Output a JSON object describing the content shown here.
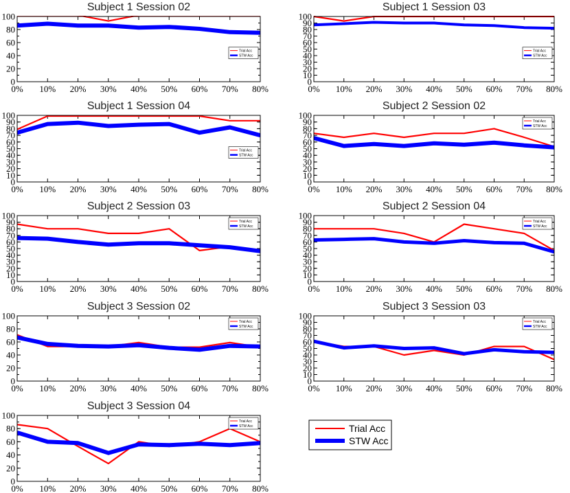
{
  "figure": {
    "legend": {
      "entries": [
        {
          "label": "Trial Acc",
          "color": "#ff0000",
          "width": "thin"
        },
        {
          "label": "STW Acc",
          "color": "#0000ff",
          "width": "thick"
        }
      ]
    }
  },
  "chart_data": [
    {
      "type": "line",
      "title": "Subject 1 Session 02",
      "categories": [
        "0%",
        "10%",
        "20%",
        "30%",
        "40%",
        "50%",
        "60%",
        "70%",
        "80%"
      ],
      "ylim": [
        0,
        100
      ],
      "yticks": [
        0,
        20,
        40,
        60,
        80,
        100
      ],
      "legend_position": "right",
      "series": [
        {
          "name": "Trial Acc",
          "color": "#ff0000",
          "values": [
            102,
            102,
            102,
            93,
            102,
            102,
            102,
            102,
            102
          ]
        },
        {
          "name": "STW Acc",
          "color": "#0000ff",
          "values": [
            86,
            89,
            86,
            86,
            83,
            84,
            81,
            76,
            75
          ]
        }
      ]
    },
    {
      "type": "line",
      "title": "Subject 1 Session 03",
      "categories": [
        "0%",
        "10%",
        "20%",
        "30%",
        "40%",
        "50%",
        "60%",
        "70%",
        "80%"
      ],
      "ylim": [
        0,
        100
      ],
      "yticks": [
        0,
        10,
        20,
        30,
        40,
        50,
        60,
        70,
        80,
        90,
        100
      ],
      "legend_position": "right",
      "series": [
        {
          "name": "Trial Acc",
          "color": "#ff0000",
          "values": [
            100,
            93,
            100,
            100,
            100,
            100,
            100,
            100,
            100
          ]
        },
        {
          "name": "STW Acc",
          "color": "#0000ff",
          "values": [
            87,
            89,
            91,
            90,
            90,
            87,
            86,
            83,
            82
          ]
        }
      ]
    },
    {
      "type": "line",
      "title": "Subject 1 Session 04",
      "categories": [
        "0%",
        "10%",
        "20%",
        "30%",
        "40%",
        "50%",
        "60%",
        "70%",
        "80%"
      ],
      "ylim": [
        0,
        100
      ],
      "yticks": [
        0,
        10,
        20,
        30,
        40,
        50,
        60,
        70,
        80,
        90,
        100
      ],
      "legend_position": "right",
      "series": [
        {
          "name": "Trial Acc",
          "color": "#ff0000",
          "values": [
            79,
            99,
            99,
            99,
            99,
            99,
            99,
            92,
            92
          ]
        },
        {
          "name": "STW Acc",
          "color": "#0000ff",
          "values": [
            74,
            87,
            89,
            84,
            86,
            87,
            74,
            82,
            70
          ]
        }
      ]
    },
    {
      "type": "line",
      "title": "Subject 2 Session 02",
      "categories": [
        "0%",
        "10%",
        "20%",
        "30%",
        "40%",
        "50%",
        "60%",
        "70%",
        "80%"
      ],
      "ylim": [
        0,
        100
      ],
      "yticks": [
        0,
        10,
        20,
        30,
        40,
        50,
        60,
        70,
        80,
        90,
        100
      ],
      "legend_position": "top-right",
      "series": [
        {
          "name": "Trial Acc",
          "color": "#ff0000",
          "values": [
            73,
            67,
            73,
            67,
            73,
            73,
            80,
            67,
            53
          ]
        },
        {
          "name": "STW Acc",
          "color": "#0000ff",
          "values": [
            66,
            54,
            57,
            54,
            58,
            56,
            59,
            55,
            52
          ]
        }
      ]
    },
    {
      "type": "line",
      "title": "Subject 2 Session 03",
      "categories": [
        "0%",
        "10%",
        "20%",
        "30%",
        "40%",
        "50%",
        "60%",
        "70%",
        "80%"
      ],
      "ylim": [
        0,
        100
      ],
      "yticks": [
        0,
        10,
        20,
        30,
        40,
        50,
        60,
        70,
        80,
        90,
        100
      ],
      "legend_position": "top-right",
      "series": [
        {
          "name": "Trial Acc",
          "color": "#ff0000",
          "values": [
            87,
            80,
            80,
            73,
            73,
            80,
            47,
            53,
            47
          ]
        },
        {
          "name": "STW Acc",
          "color": "#0000ff",
          "values": [
            66,
            65,
            60,
            56,
            58,
            58,
            55,
            52,
            46
          ]
        }
      ]
    },
    {
      "type": "line",
      "title": "Subject 2 Session 04",
      "categories": [
        "0%",
        "10%",
        "20%",
        "30%",
        "40%",
        "50%",
        "60%",
        "70%",
        "80%"
      ],
      "ylim": [
        0,
        100
      ],
      "yticks": [
        0,
        10,
        20,
        30,
        40,
        50,
        60,
        70,
        80,
        90,
        100
      ],
      "legend_position": "top-right",
      "series": [
        {
          "name": "Trial Acc",
          "color": "#ff0000",
          "values": [
            80,
            80,
            80,
            73,
            60,
            87,
            80,
            73,
            47
          ]
        },
        {
          "name": "STW Acc",
          "color": "#0000ff",
          "values": [
            63,
            64,
            65,
            60,
            58,
            62,
            59,
            58,
            45
          ]
        }
      ]
    },
    {
      "type": "line",
      "title": "Subject 3 Session 02",
      "categories": [
        "0%",
        "10%",
        "20%",
        "30%",
        "40%",
        "50%",
        "60%",
        "70%",
        "80%"
      ],
      "ylim": [
        0,
        100
      ],
      "yticks": [
        0,
        20,
        40,
        60,
        80,
        100
      ],
      "legend_position": "top-right",
      "series": [
        {
          "name": "Trial Acc",
          "color": "#ff0000",
          "values": [
            71,
            53,
            53,
            53,
            59,
            52,
            52,
            59,
            52
          ]
        },
        {
          "name": "STW Acc",
          "color": "#0000ff",
          "values": [
            67,
            57,
            54,
            53,
            55,
            51,
            48,
            54,
            53
          ]
        }
      ]
    },
    {
      "type": "line",
      "title": "Subject 3 Session 03",
      "categories": [
        "0%",
        "10%",
        "20%",
        "30%",
        "40%",
        "50%",
        "60%",
        "70%",
        "80%"
      ],
      "ylim": [
        0,
        100
      ],
      "yticks": [
        0,
        10,
        20,
        30,
        40,
        50,
        60,
        70,
        80,
        90,
        100
      ],
      "legend_position": "top-right",
      "series": [
        {
          "name": "Trial Acc",
          "color": "#ff0000",
          "values": [
            61,
            53,
            53,
            40,
            47,
            40,
            53,
            53,
            33
          ]
        },
        {
          "name": "STW Acc",
          "color": "#0000ff",
          "values": [
            61,
            51,
            54,
            50,
            51,
            42,
            48,
            45,
            44
          ]
        }
      ]
    },
    {
      "type": "line",
      "title": "Subject 3 Session 04",
      "categories": [
        "0%",
        "10%",
        "20%",
        "30%",
        "40%",
        "50%",
        "60%",
        "70%",
        "80%"
      ],
      "ylim": [
        0,
        100
      ],
      "yticks": [
        0,
        20,
        40,
        60,
        80,
        100
      ],
      "legend_position": "top-right",
      "series": [
        {
          "name": "Trial Acc",
          "color": "#ff0000",
          "values": [
            86,
            80,
            53,
            27,
            60,
            53,
            60,
            80,
            60
          ]
        },
        {
          "name": "STW Acc",
          "color": "#0000ff",
          "values": [
            74,
            60,
            58,
            43,
            56,
            55,
            57,
            55,
            58
          ]
        }
      ]
    }
  ]
}
